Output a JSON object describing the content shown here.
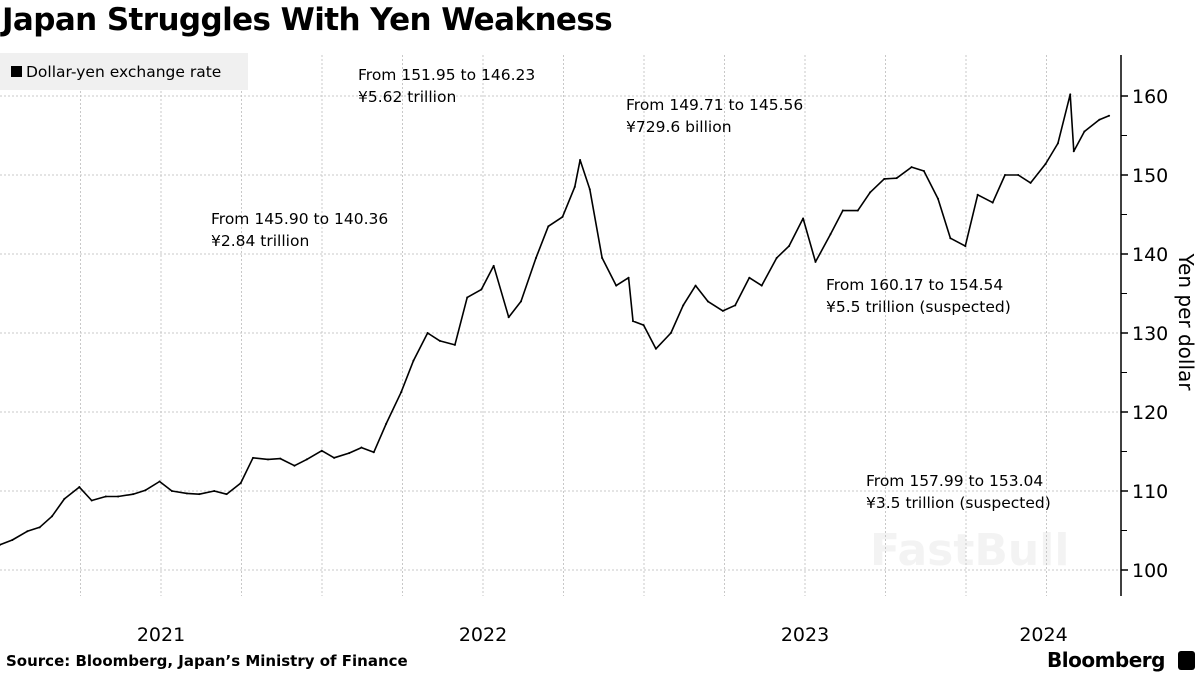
{
  "title": "Japan Struggles With Yen Weakness",
  "legend": {
    "label": "Dollar-yen exchange rate",
    "color": "#000000"
  },
  "annotations": [
    {
      "line1": "From 145.90 to 140.36",
      "line2": "¥2.84 trillion"
    },
    {
      "line1": "From 151.95 to 146.23",
      "line2": "¥5.62 trillion"
    },
    {
      "line1": "From 149.71 to 145.56",
      "line2": "¥729.6 billion"
    },
    {
      "line1": "From 160.17 to 154.54",
      "line2": "¥5.5 trillion (suspected)"
    },
    {
      "line1": "From 157.99 to 153.04",
      "line2": "¥3.5 trillion (suspected)"
    }
  ],
  "source": "Source: Bloomberg, Japan’s Ministry of Finance",
  "brand": "Bloomberg",
  "watermark": "FastBull",
  "chart_data": {
    "type": "line",
    "title": "Japan Struggles With Yen Weakness",
    "ylabel": "Yen per dollar",
    "xlabel": "",
    "ylim": [
      97,
      166
    ],
    "y_ticks": [
      100,
      110,
      120,
      130,
      140,
      150,
      160
    ],
    "x_tick_labels": [
      "2021",
      "2022",
      "2023",
      "2024"
    ],
    "xlim": [
      "2021-01-01",
      "2024-06-25"
    ],
    "grid": true,
    "legend_position": "top-left",
    "series": [
      {
        "name": "Dollar-yen exchange rate",
        "color": "#000000",
        "x": [
          "2021-01-01",
          "2021-01-15",
          "2021-02-01",
          "2021-02-15",
          "2021-03-01",
          "2021-03-15",
          "2021-04-01",
          "2021-04-15",
          "2021-05-01",
          "2021-05-15",
          "2021-06-01",
          "2021-06-15",
          "2021-07-01",
          "2021-07-15",
          "2021-08-01",
          "2021-08-15",
          "2021-09-01",
          "2021-09-15",
          "2021-10-01",
          "2021-10-15",
          "2021-11-01",
          "2021-11-15",
          "2021-12-01",
          "2021-12-15",
          "2022-01-01",
          "2022-01-15",
          "2022-02-01",
          "2022-02-15",
          "2022-03-01",
          "2022-03-15",
          "2022-04-01",
          "2022-04-15",
          "2022-05-01",
          "2022-05-15",
          "2022-06-01",
          "2022-06-15",
          "2022-07-01",
          "2022-07-15",
          "2022-08-01",
          "2022-08-15",
          "2022-09-01",
          "2022-09-15",
          "2022-10-01",
          "2022-10-15",
          "2022-10-21",
          "2022-11-01",
          "2022-11-15",
          "2022-12-01",
          "2022-12-15",
          "2022-12-20",
          "2023-01-01",
          "2023-01-15",
          "2023-02-01",
          "2023-02-15",
          "2023-03-01",
          "2023-03-15",
          "2023-04-01",
          "2023-04-15",
          "2023-05-01",
          "2023-05-15",
          "2023-06-01",
          "2023-06-15",
          "2023-07-01",
          "2023-07-15",
          "2023-08-01",
          "2023-08-15",
          "2023-09-01",
          "2023-09-15",
          "2023-10-01",
          "2023-10-15",
          "2023-11-01",
          "2023-11-15",
          "2023-12-01",
          "2023-12-15",
          "2024-01-01",
          "2024-01-15",
          "2024-02-01",
          "2024-02-15",
          "2024-03-01",
          "2024-03-15",
          "2024-04-01",
          "2024-04-15",
          "2024-04-29",
          "2024-05-03",
          "2024-05-15",
          "2024-06-01",
          "2024-06-12"
        ],
        "y": [
          103.2,
          103.8,
          104.9,
          105.4,
          106.8,
          109.0,
          110.5,
          108.8,
          109.3,
          109.3,
          109.6,
          110.1,
          111.2,
          110.0,
          109.7,
          109.6,
          110.0,
          109.6,
          111.0,
          114.2,
          114.0,
          114.1,
          113.2,
          114.0,
          115.1,
          114.2,
          114.8,
          115.5,
          114.9,
          118.5,
          122.5,
          126.5,
          130.0,
          129.0,
          128.5,
          134.5,
          135.5,
          138.5,
          132.0,
          134.0,
          139.5,
          143.5,
          144.7,
          148.5,
          151.9,
          148.2,
          139.5,
          136.0,
          137.0,
          131.5,
          131.0,
          128.0,
          130.0,
          133.5,
          136.0,
          134.0,
          132.8,
          133.5,
          137.0,
          136.0,
          139.5,
          141.0,
          144.5,
          139.0,
          142.5,
          145.5,
          145.5,
          147.8,
          149.5,
          149.6,
          151.0,
          150.5,
          147.0,
          142.0,
          141.0,
          147.5,
          146.5,
          150.0,
          150.0,
          149.0,
          151.4,
          154.0,
          160.2,
          153.0,
          155.5,
          157.0,
          157.5
        ]
      }
    ]
  }
}
